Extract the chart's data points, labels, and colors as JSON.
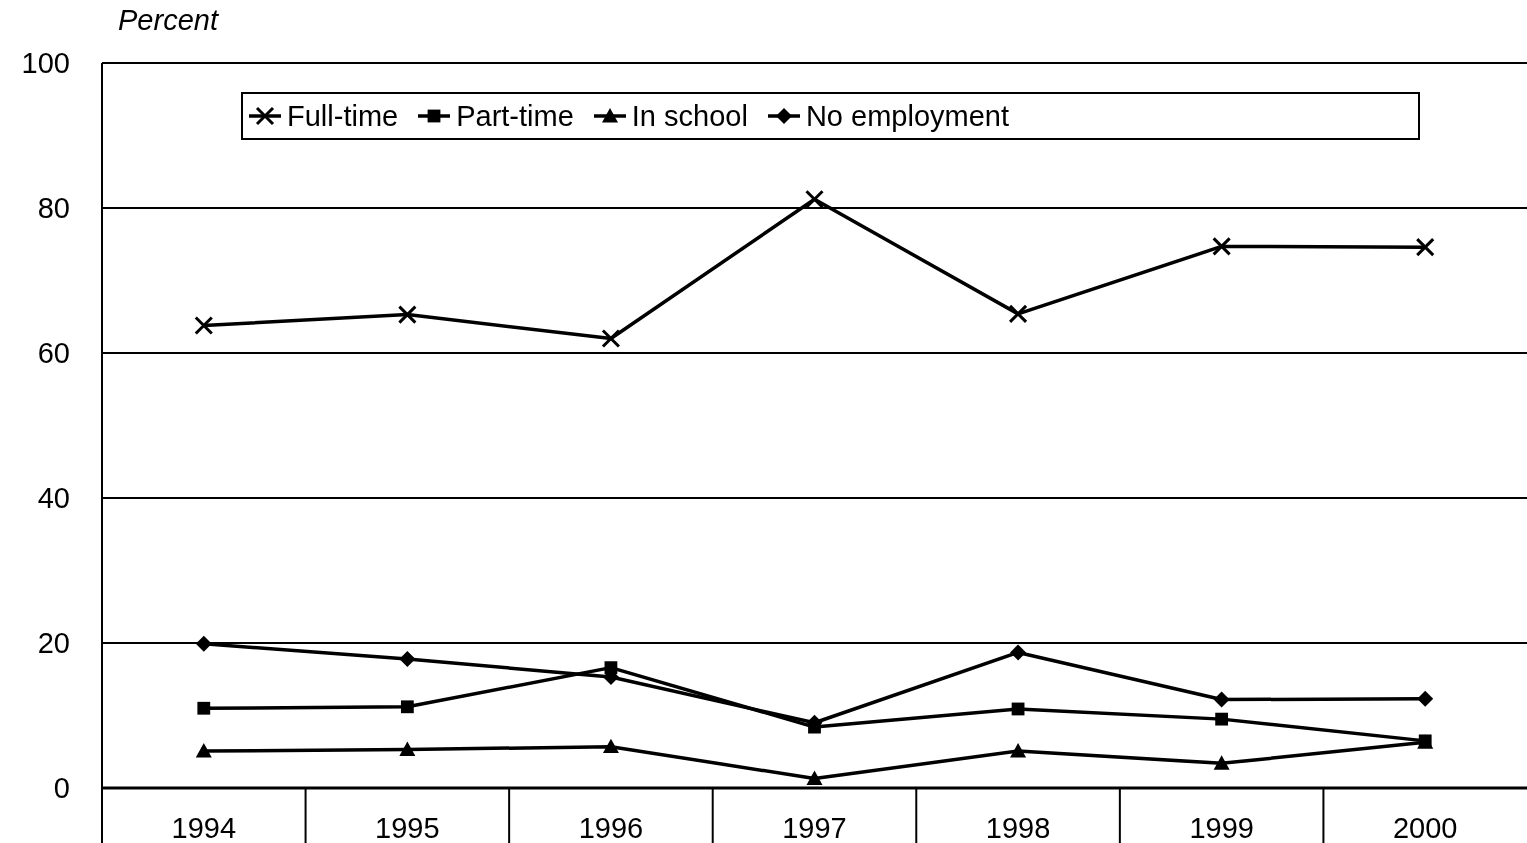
{
  "chart_data": {
    "type": "line",
    "ylabel": "Percent",
    "categories": [
      "1994",
      "1995",
      "1996",
      "1997",
      "1998",
      "1999",
      "2000"
    ],
    "ylim": [
      0,
      100
    ],
    "yticks": [
      0,
      20,
      40,
      60,
      80,
      100
    ],
    "grid": "y",
    "legend": "top",
    "line_style": "solid",
    "series": [
      {
        "name": "Full-time",
        "color": "#000000",
        "marker": "cross",
        "values": [
          63.8,
          65.3,
          62.0,
          81.2,
          65.4,
          74.7,
          74.6
        ]
      },
      {
        "name": "Part-time",
        "color": "#000000",
        "marker": "square",
        "values": [
          11.0,
          11.2,
          16.6,
          8.4,
          10.9,
          9.5,
          6.5
        ]
      },
      {
        "name": "In school",
        "color": "#000000",
        "marker": "triangle",
        "values": [
          5.1,
          5.3,
          5.7,
          1.3,
          5.1,
          3.4,
          6.3
        ]
      },
      {
        "name": "No employment",
        "color": "#000000",
        "marker": "diamond",
        "values": [
          19.9,
          17.8,
          15.3,
          9.0,
          18.7,
          12.2,
          12.3
        ]
      }
    ]
  }
}
